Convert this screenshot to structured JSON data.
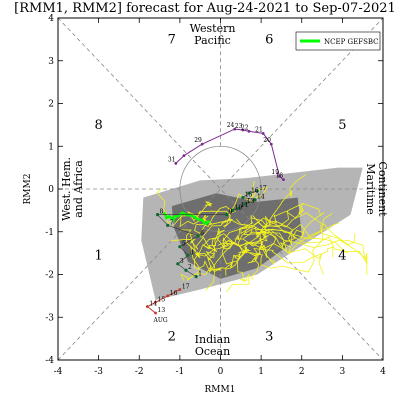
{
  "chart_data": {
    "type": "scatter",
    "title": "[RMM1, RMM2] forecast for Aug-24-2021 to Sep-07-2021",
    "xlabel": "RMM1",
    "ylabel": "RMM2",
    "xlim": [
      -4,
      4
    ],
    "ylim": [
      -4,
      4
    ],
    "xticks": [
      "-4",
      "-3",
      "-2",
      "-1",
      "0",
      "1",
      "2",
      "3",
      "4"
    ],
    "yticks": [
      "-4",
      "-3",
      "-2",
      "-1",
      "0",
      "1",
      "2",
      "3",
      "4"
    ],
    "phases": [
      {
        "label": "1",
        "x": -3.0,
        "y": -1.55
      },
      {
        "label": "2",
        "x": -1.2,
        "y": -3.45
      },
      {
        "label": "3",
        "x": 1.2,
        "y": -3.45
      },
      {
        "label": "4",
        "x": 3.0,
        "y": -1.55
      },
      {
        "label": "5",
        "x": 3.0,
        "y": 1.5
      },
      {
        "label": "6",
        "x": 1.2,
        "y": 3.5
      },
      {
        "label": "7",
        "x": -1.2,
        "y": 3.5
      },
      {
        "label": "8",
        "x": -3.0,
        "y": 1.5
      }
    ],
    "regions": {
      "top": [
        "Western",
        "Pacific"
      ],
      "bottom": [
        "Indian",
        "Ocean"
      ],
      "left": [
        "West. Hem.",
        "and Africa"
      ],
      "right": [
        "Maritime",
        "Continent"
      ]
    },
    "legend": {
      "label": "NCEP GEFSBC",
      "color": "#00ff00",
      "position": "top-right"
    },
    "observed": {
      "color": "#7b2a8f",
      "points": [
        {
          "x": -1.1,
          "y": 0.6,
          "label": "31"
        },
        {
          "x": -0.9,
          "y": 0.78,
          "label": ""
        },
        {
          "x": -0.45,
          "y": 1.05,
          "label": "29"
        },
        {
          "x": 0.35,
          "y": 1.4,
          "label": "24"
        },
        {
          "x": 0.55,
          "y": 1.38,
          "label": "23"
        },
        {
          "x": 0.7,
          "y": 1.35,
          "label": "22"
        },
        {
          "x": 1.05,
          "y": 1.3,
          "label": "21"
        },
        {
          "x": 1.25,
          "y": 1.05,
          "label": "20"
        },
        {
          "x": 1.45,
          "y": 0.3,
          "label": "19"
        },
        {
          "x": 1.55,
          "y": 0.22,
          "label": "18"
        }
      ]
    },
    "recent": {
      "color": "#c0392b",
      "label_text": "AUG",
      "points": [
        {
          "x": -1.0,
          "y": -2.35,
          "label": "17"
        },
        {
          "x": -1.3,
          "y": -2.5,
          "label": "16"
        },
        {
          "x": -1.6,
          "y": -2.65,
          "label": "15"
        },
        {
          "x": -1.8,
          "y": -2.75,
          "label": "14"
        },
        {
          "x": -1.6,
          "y": -2.9,
          "label": "13"
        }
      ]
    },
    "inner_points": [
      {
        "x": 0.9,
        "y": -0.05,
        "label": "17"
      },
      {
        "x": 0.7,
        "y": -0.1,
        "label": "16"
      },
      {
        "x": 0.55,
        "y": -0.2,
        "label": "15"
      },
      {
        "x": 0.85,
        "y": -0.25,
        "label": "14"
      },
      {
        "x": 0.6,
        "y": -0.35,
        "label": "13"
      },
      {
        "x": 0.45,
        "y": -0.45,
        "label": "11"
      },
      {
        "x": 0.3,
        "y": -0.5,
        "label": "10"
      },
      {
        "x": 0.15,
        "y": -0.6,
        "label": "9"
      },
      {
        "x": -1.55,
        "y": -0.6,
        "label": "8"
      },
      {
        "x": -1.3,
        "y": -0.85,
        "label": "7"
      },
      {
        "x": -0.55,
        "y": -1.1,
        "label": "6"
      },
      {
        "x": -1.0,
        "y": -1.35,
        "label": "5"
      },
      {
        "x": -0.8,
        "y": -1.55,
        "label": "4"
      },
      {
        "x": -1.05,
        "y": -1.75,
        "label": "3"
      },
      {
        "x": -0.85,
        "y": -1.9,
        "label": "2"
      },
      {
        "x": -0.6,
        "y": -2.05,
        "label": "1"
      }
    ],
    "ensemble_light_polygon": [
      [
        -1.9,
        -0.2
      ],
      [
        -0.5,
        0.2
      ],
      [
        0.6,
        0.25
      ],
      [
        2.9,
        0.5
      ],
      [
        3.5,
        0.5
      ],
      [
        3.2,
        -0.6
      ],
      [
        0.9,
        -2.0
      ],
      [
        -0.5,
        -2.35
      ],
      [
        -1.6,
        -2.6
      ],
      [
        -1.95,
        -1.2
      ]
    ],
    "ensemble_dark_polygon": [
      [
        -1.2,
        -0.4
      ],
      [
        -0.1,
        -0.1
      ],
      [
        0.9,
        -0.3
      ],
      [
        1.9,
        -0.2
      ],
      [
        2.0,
        -1.1
      ],
      [
        0.9,
        -1.85
      ],
      [
        0.0,
        -2.1
      ],
      [
        -0.8,
        -1.7
      ],
      [
        -1.15,
        -0.9
      ]
    ]
  }
}
